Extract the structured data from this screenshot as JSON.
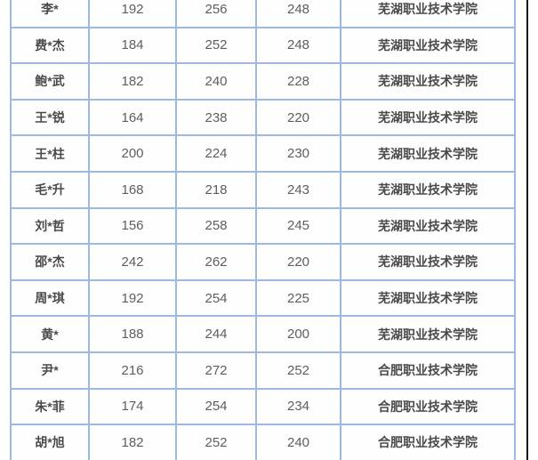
{
  "colors": {
    "table_border": "#9db8e2",
    "name_text": "#4a4a4a",
    "score_text": "#5e5e5e",
    "edge_line": "#141414",
    "cell_background": "#fefefe"
  },
  "table": {
    "columns": [
      "name",
      "score1",
      "score2",
      "score3",
      "school"
    ],
    "rows": [
      {
        "name": "李*",
        "score1": "192",
        "score2": "256",
        "score3": "248",
        "school": "芜湖职业技术学院"
      },
      {
        "name": "费*杰",
        "score1": "184",
        "score2": "252",
        "score3": "248",
        "school": "芜湖职业技术学院"
      },
      {
        "name": "鲍*武",
        "score1": "182",
        "score2": "240",
        "score3": "228",
        "school": "芜湖职业技术学院"
      },
      {
        "name": "王*锐",
        "score1": "164",
        "score2": "238",
        "score3": "220",
        "school": "芜湖职业技术学院"
      },
      {
        "name": "王*柱",
        "score1": "200",
        "score2": "224",
        "score3": "230",
        "school": "芜湖职业技术学院"
      },
      {
        "name": "毛*升",
        "score1": "168",
        "score2": "218",
        "score3": "243",
        "school": "芜湖职业技术学院"
      },
      {
        "name": "刘*哲",
        "score1": "156",
        "score2": "258",
        "score3": "245",
        "school": "芜湖职业技术学院"
      },
      {
        "name": "邵*杰",
        "score1": "242",
        "score2": "262",
        "score3": "220",
        "school": "芜湖职业技术学院"
      },
      {
        "name": "周*琪",
        "score1": "192",
        "score2": "254",
        "score3": "225",
        "school": "芜湖职业技术学院"
      },
      {
        "name": "黄*",
        "score1": "188",
        "score2": "244",
        "score3": "200",
        "school": "芜湖职业技术学院"
      },
      {
        "name": "尹*",
        "score1": "216",
        "score2": "272",
        "score3": "252",
        "school": "合肥职业技术学院"
      },
      {
        "name": "朱*菲",
        "score1": "174",
        "score2": "254",
        "score3": "234",
        "school": "合肥职业技术学院"
      },
      {
        "name": "胡*旭",
        "score1": "182",
        "score2": "252",
        "score3": "240",
        "school": "合肥职业技术学院"
      }
    ]
  }
}
